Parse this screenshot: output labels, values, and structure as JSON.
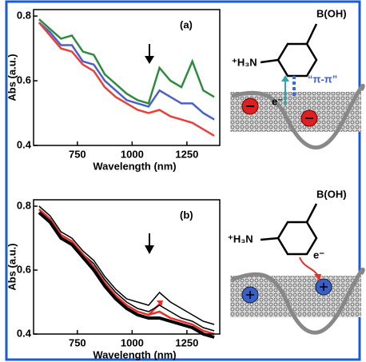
{
  "chart_data": [
    {
      "type": "line",
      "annotation": "(a)",
      "xlabel": "Wavelength (nm)",
      "ylabel": "Abs (a.u.)",
      "x": [
        575,
        625,
        675,
        725,
        775,
        825,
        875,
        925,
        975,
        1025,
        1075,
        1125,
        1175,
        1225,
        1275,
        1325,
        1375
      ],
      "series": [
        {
          "color": "#2e8b3e",
          "values": [
            0.79,
            0.76,
            0.73,
            0.74,
            0.69,
            0.68,
            0.62,
            0.59,
            0.56,
            0.54,
            0.53,
            0.64,
            0.6,
            0.58,
            0.66,
            0.57,
            0.55
          ]
        },
        {
          "color": "#4a5fd0",
          "values": [
            0.78,
            0.75,
            0.71,
            0.71,
            0.66,
            0.65,
            0.6,
            0.57,
            0.54,
            0.53,
            0.52,
            0.57,
            0.55,
            0.53,
            0.53,
            0.5,
            0.48
          ]
        },
        {
          "color": "#e8403a",
          "values": [
            0.78,
            0.74,
            0.7,
            0.69,
            0.65,
            0.63,
            0.58,
            0.55,
            0.53,
            0.51,
            0.5,
            0.51,
            0.49,
            0.48,
            0.47,
            0.45,
            0.43
          ]
        }
      ],
      "xlim": [
        550,
        1400
      ],
      "ylim": [
        0.4,
        0.82
      ],
      "xticks": [
        750,
        1000,
        1250
      ],
      "yticks": [
        0.4,
        0.6,
        0.8
      ]
    },
    {
      "type": "line",
      "annotation": "(b)",
      "xlabel": "Wavelength (nm)",
      "ylabel": "Abs (a.u.)",
      "x": [
        575,
        625,
        675,
        725,
        775,
        825,
        875,
        925,
        975,
        1025,
        1075,
        1125,
        1175,
        1225,
        1275,
        1325,
        1375
      ],
      "series": [
        {
          "color": "#000000",
          "values": [
            0.8,
            0.77,
            0.72,
            0.7,
            0.66,
            0.63,
            0.58,
            0.54,
            0.51,
            0.5,
            0.49,
            0.53,
            0.5,
            0.48,
            0.46,
            0.44,
            0.43
          ]
        },
        {
          "color": "#000000",
          "values": [
            0.79,
            0.76,
            0.71,
            0.69,
            0.65,
            0.62,
            0.57,
            0.53,
            0.5,
            0.48,
            0.47,
            0.49,
            0.47,
            0.45,
            0.44,
            0.42,
            0.41
          ]
        },
        {
          "color": "#e8302a",
          "values": [
            0.79,
            0.76,
            0.71,
            0.69,
            0.65,
            0.61,
            0.56,
            0.52,
            0.49,
            0.47,
            0.46,
            0.47,
            0.45,
            0.44,
            0.43,
            0.41,
            0.4
          ]
        },
        {
          "color": "#000000",
          "values": [
            0.78,
            0.75,
            0.7,
            0.68,
            0.64,
            0.6,
            0.55,
            0.51,
            0.48,
            0.46,
            0.45,
            0.45,
            0.44,
            0.43,
            0.42,
            0.4,
            0.39
          ]
        }
      ],
      "xlim": [
        550,
        1400
      ],
      "ylim": [
        0.4,
        0.82
      ],
      "xticks": [
        750,
        1000,
        1250
      ],
      "yticks": [
        0.4,
        0.6,
        0.8
      ]
    }
  ],
  "schemes": [
    {
      "amine": "⁺H₃N",
      "boronic": "B(OH)",
      "electron": "e⁻",
      "interaction": "“π-π”"
    },
    {
      "amine": "⁺H₃N",
      "boronic": "B(OH)",
      "electron": "e⁻"
    }
  ]
}
